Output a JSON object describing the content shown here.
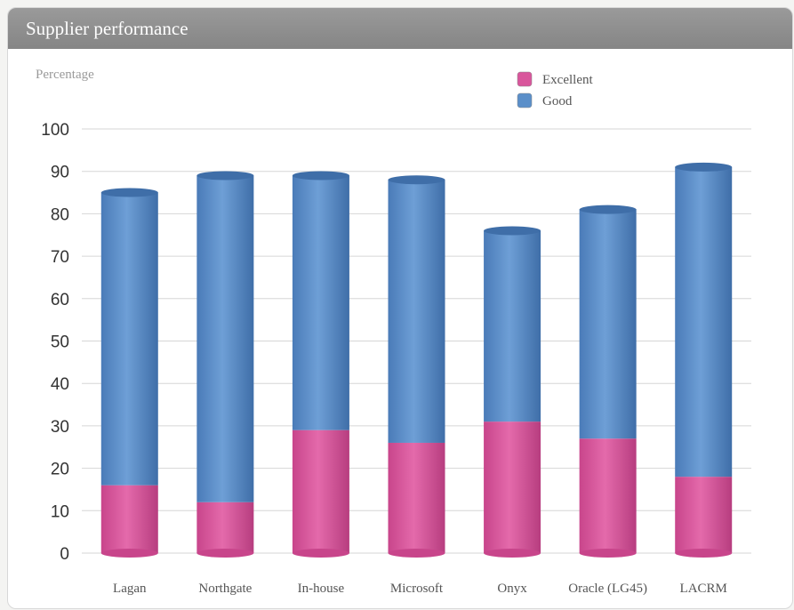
{
  "header": {
    "title": "Supplier performance"
  },
  "chart_data": {
    "type": "bar",
    "stacked": true,
    "title": "Supplier performance",
    "ylabel": "Percentage",
    "xlabel": "",
    "ylim": [
      0,
      100
    ],
    "yticks": [
      0,
      10,
      20,
      30,
      40,
      50,
      60,
      70,
      80,
      90,
      100
    ],
    "grid": true,
    "legend_position": "top-right",
    "categories": [
      "Lagan",
      "Northgate",
      "In-house",
      "Microsoft",
      "Onyx",
      "Oracle (LG45)",
      "LACRM"
    ],
    "series": [
      {
        "name": "Excellent",
        "color": "#d9569c",
        "values": [
          16,
          12,
          29,
          26,
          31,
          27,
          18
        ]
      },
      {
        "name": "Good",
        "color": "#5b8fc9",
        "values": [
          69,
          77,
          60,
          62,
          45,
          54,
          73
        ]
      }
    ]
  }
}
